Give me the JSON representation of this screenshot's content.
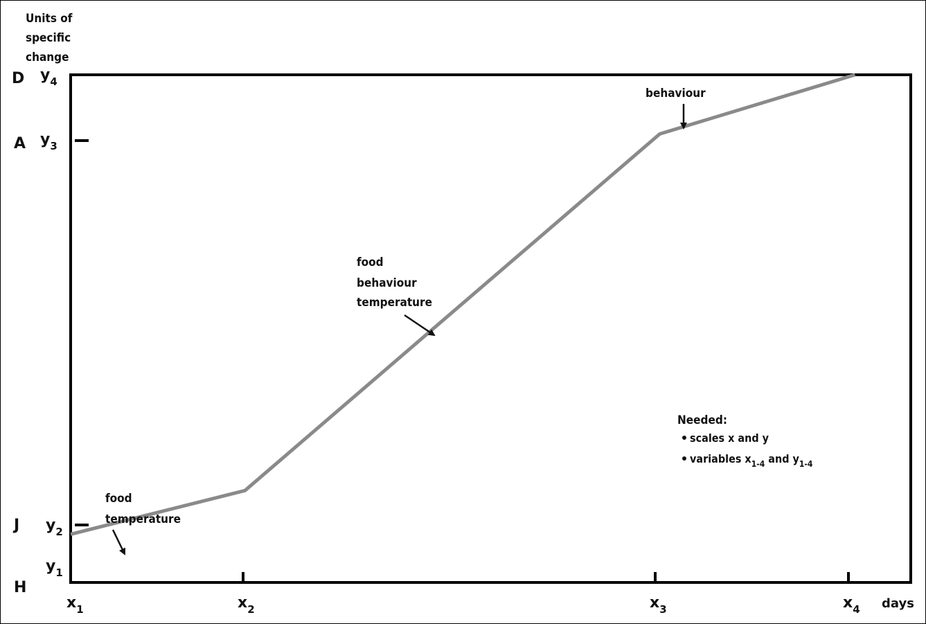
{
  "chart_data": {
    "type": "line",
    "y_axis_title": [
      "Units of",
      "specific",
      "change"
    ],
    "x_unit_label": "days",
    "x_ticks": [
      {
        "base": "x",
        "sub": "1"
      },
      {
        "base": "x",
        "sub": "2"
      },
      {
        "base": "x",
        "sub": "3"
      },
      {
        "base": "x",
        "sub": "4"
      }
    ],
    "y_ticks": [
      {
        "base": "y",
        "sub": "1"
      },
      {
        "base": "y",
        "sub": "2"
      },
      {
        "base": "y",
        "sub": "3"
      },
      {
        "base": "y",
        "sub": "4"
      }
    ],
    "stage_letters": [
      {
        "letter": "H",
        "level": 0
      },
      {
        "letter": "J",
        "level": 2
      },
      {
        "letter": "A",
        "level": 3
      },
      {
        "letter": "D",
        "level": 4
      }
    ],
    "x_scale": [
      0,
      250,
      845,
      1125
    ],
    "y_scale": [
      0,
      10,
      75,
      575,
      720
    ],
    "series": [
      {
        "points": [
          {
            "x": 0,
            "y": 75
          },
          {
            "x": 250,
            "y": 143
          },
          {
            "x": 845,
            "y": 698
          },
          {
            "x": 1125,
            "y": 790
          }
        ]
      }
    ],
    "xlim": [
      0,
      1205
    ],
    "ylim": [
      0,
      790
    ],
    "annotations": [
      {
        "lines": [
          "food",
          "temperature"
        ],
        "segment": 1
      },
      {
        "lines": [
          "food",
          "behaviour",
          "temperature"
        ],
        "segment": 2
      },
      {
        "lines": [
          "behaviour"
        ],
        "segment": 3
      }
    ],
    "note": {
      "title": "Needed:",
      "items": [
        {
          "text": "scales x and y",
          "parts": null
        },
        {
          "text": "variables x1-4 and y1-4",
          "parts": [
            "variables x",
            "1-4",
            " and y",
            "1-4"
          ]
        }
      ]
    },
    "line_color": "#8a8a8a",
    "frame_color": "#000000"
  }
}
